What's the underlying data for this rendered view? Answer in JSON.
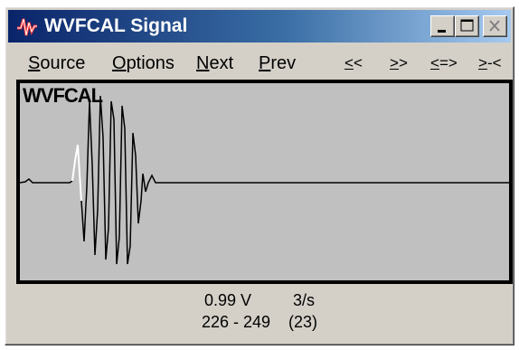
{
  "window": {
    "title": "WVFCAL Signal"
  },
  "icons": {
    "app": "signal-app-icon",
    "minimize": "minimize-icon",
    "maximize": "maximize-icon",
    "close": "close-icon"
  },
  "menu": {
    "items": [
      "Source",
      "Options",
      "Next",
      "Prev",
      "<<",
      ">>",
      "<=>",
      ">-<"
    ]
  },
  "signal": {
    "label": "WVFCAL",
    "trace_color": "#000000",
    "highlight_color": "#ffffff",
    "background_color": "#c0c0c0"
  },
  "status": {
    "voltage": "0.99 V",
    "rate": "3/s",
    "range": "226 - 249",
    "count": "(23)"
  }
}
